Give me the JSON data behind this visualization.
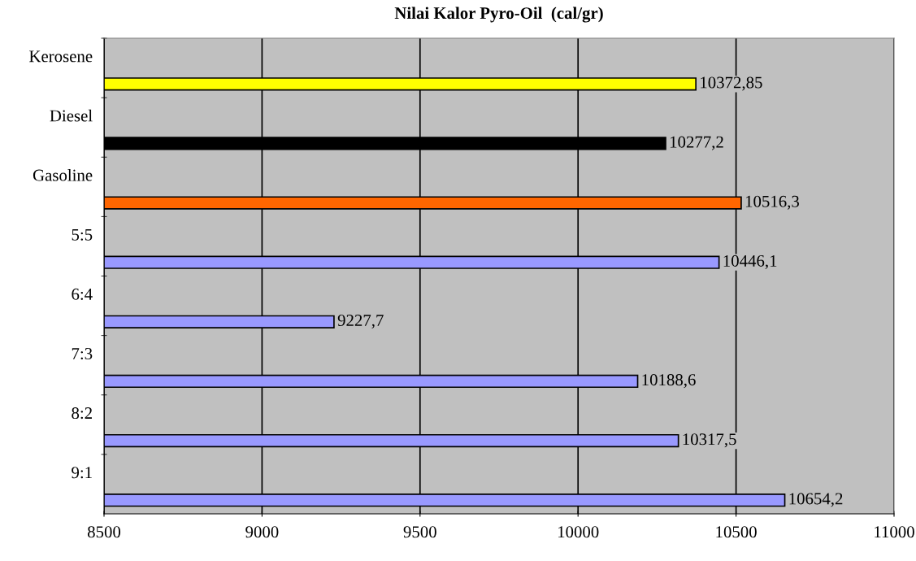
{
  "chart_data": {
    "type": "bar",
    "orientation": "horizontal",
    "title": "Nilai Kalor Pyro-Oil  (cal/gr)",
    "categories": [
      "Kerosene",
      "Diesel",
      "Gasoline",
      "5:5",
      "6:4",
      "7:3",
      "8:2",
      "9:1"
    ],
    "values": [
      10372.85,
      10277.2,
      10516.3,
      10446.1,
      9227.7,
      10188.6,
      10317.5,
      10654.2
    ],
    "colors": [
      "#ffff00",
      "#000000",
      "#ff6600",
      "#9999ff",
      "#9999ff",
      "#9999ff",
      "#9999ff",
      "#9999ff"
    ],
    "value_labels": [
      "10372,85",
      "10277,2",
      "10516,3",
      "10446,1",
      "9227,7",
      "10188,6",
      "10317,5",
      "10654,2"
    ],
    "xlim": [
      8500,
      11000
    ],
    "xticks": [
      8500,
      9000,
      9500,
      10000,
      10500,
      11000
    ],
    "grid": "x"
  }
}
